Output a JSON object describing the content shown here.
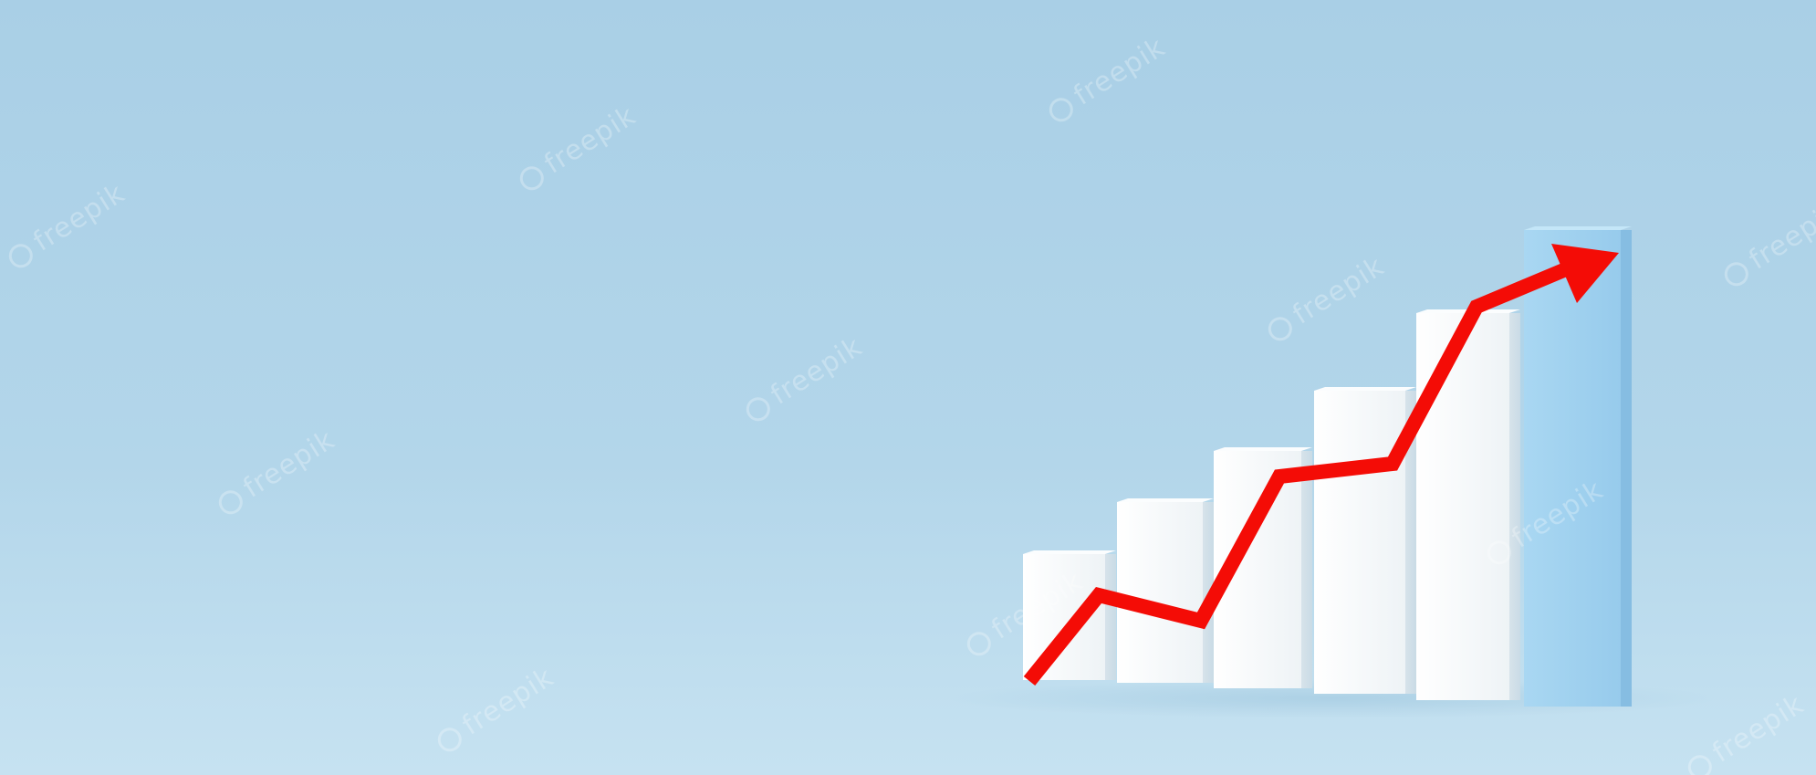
{
  "scene": {
    "subject": "3d-bar-chart-with-rising-arrow",
    "colors": {
      "background_top": "#a9cfe6",
      "background_bottom": "#c6e2f1",
      "bar_white": "#f3f6f8",
      "bar_shadow": "#d9e4ea",
      "bar_accent": "#9fd0ef",
      "arrow": "#f40c06"
    },
    "watermark_text": "freepik",
    "icons": {
      "arrow": "trend-up-arrow-icon",
      "watermark": "freepik-logo-icon"
    }
  }
}
